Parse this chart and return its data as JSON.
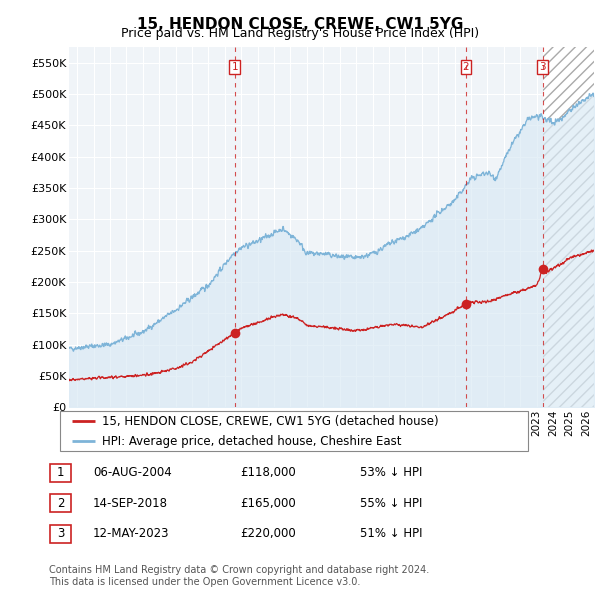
{
  "title": "15, HENDON CLOSE, CREWE, CW1 5YG",
  "subtitle": "Price paid vs. HM Land Registry's House Price Index (HPI)",
  "ylabel_ticks": [
    "£0",
    "£50K",
    "£100K",
    "£150K",
    "£200K",
    "£250K",
    "£300K",
    "£350K",
    "£400K",
    "£450K",
    "£500K",
    "£550K"
  ],
  "ytick_values": [
    0,
    50000,
    100000,
    150000,
    200000,
    250000,
    300000,
    350000,
    400000,
    450000,
    500000,
    550000
  ],
  "ylim": [
    0,
    575000
  ],
  "xlim_start": 1994.5,
  "xlim_end": 2026.5,
  "hpi_color": "#7eb4d8",
  "hpi_fill_color": "#daeaf5",
  "price_color": "#cc2222",
  "background_color": "#f0f4f8",
  "grid_color": "#ffffff",
  "hatch_start": 2023.37,
  "legend_label_red": "15, HENDON CLOSE, CREWE, CW1 5YG (detached house)",
  "legend_label_blue": "HPI: Average price, detached house, Cheshire East",
  "transactions": [
    {
      "num": 1,
      "date": "06-AUG-2004",
      "price": 118000,
      "hpi_pct": "53% ↓ HPI",
      "year": 2004.6
    },
    {
      "num": 2,
      "date": "14-SEP-2018",
      "price": 165000,
      "hpi_pct": "55% ↓ HPI",
      "year": 2018.7
    },
    {
      "num": 3,
      "date": "12-MAY-2023",
      "price": 220000,
      "hpi_pct": "51% ↓ HPI",
      "year": 2023.37
    }
  ],
  "footer": "Contains HM Land Registry data © Crown copyright and database right 2024.\nThis data is licensed under the Open Government Licence v3.0.",
  "title_fontsize": 11,
  "subtitle_fontsize": 9,
  "tick_fontsize": 8,
  "legend_fontsize": 8.5,
  "footer_fontsize": 7
}
